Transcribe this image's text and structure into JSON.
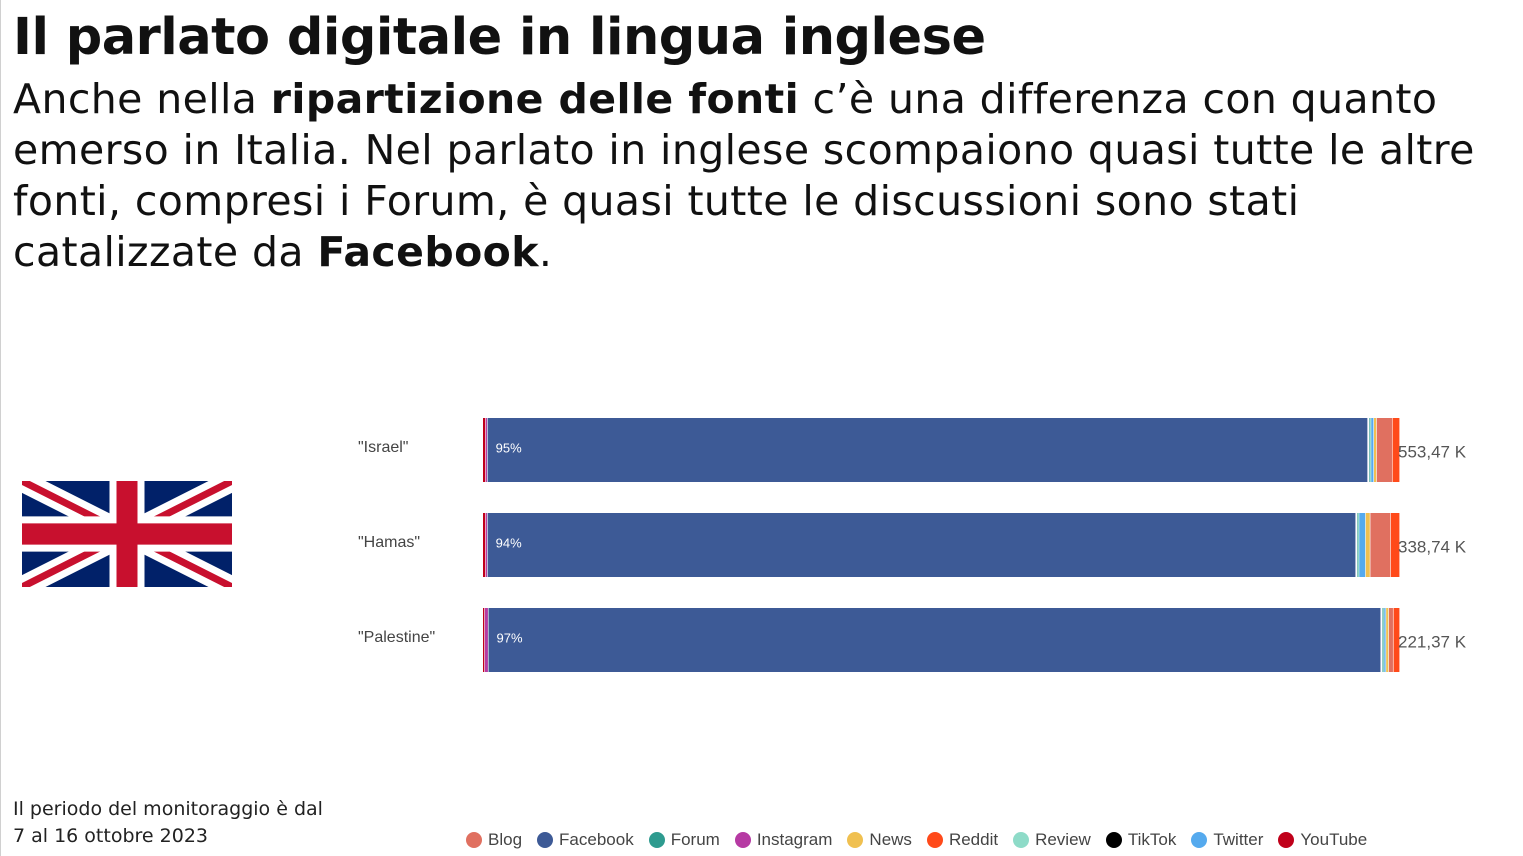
{
  "slide": {
    "title": "Il parlato digitale in lingua inglese",
    "body": {
      "part1": "Anche nella ",
      "bold1": "ripartizione delle fonti",
      "part2": " c’è una differenza con quanto emerso in Italia. Nel parlato in inglese scompaiono quasi tutte le altre fonti, compresi i Forum, è quasi tutte le discussioni sono stati catalizzate da ",
      "bold2": "Facebook",
      "part3": "."
    },
    "footnote": {
      "line1": "Il periodo del monitoraggio è dal",
      "line2": "7 al 16 ottobre 2023"
    },
    "flag": "united-kingdom-flag"
  },
  "chart_data": {
    "type": "bar",
    "orientation": "horizontal",
    "stacking": "percent",
    "categories": [
      "\"Israel\"",
      "\"Hamas\"",
      "\"Palestine\""
    ],
    "totals": [
      "553,47 K",
      "338,74 K",
      "221,37 K"
    ],
    "segment_order": [
      "YouTube",
      "Instagram",
      "Facebook",
      "Forum",
      "Review",
      "Twitter",
      "News",
      "Blog",
      "Reddit",
      "TikTok"
    ],
    "series": [
      {
        "name": "YouTube",
        "color": "#c0001a",
        "values": [
          0.3,
          0.3,
          0.2
        ]
      },
      {
        "name": "Instagram",
        "color": "#b63aa3",
        "values": [
          0.2,
          0.2,
          0.4
        ]
      },
      {
        "name": "Facebook",
        "color": "#3d5a96",
        "values": [
          95,
          94,
          97
        ],
        "labels": [
          "95%",
          "94%",
          "97%"
        ]
      },
      {
        "name": "Forum",
        "color": "#2e9b8f",
        "values": [
          0.1,
          0.1,
          0.1
        ]
      },
      {
        "name": "Review",
        "color": "#8edbc8",
        "values": [
          0.1,
          0.1,
          0.1
        ]
      },
      {
        "name": "Twitter",
        "color": "#55aaee",
        "values": [
          0.3,
          0.7,
          0.2
        ]
      },
      {
        "name": "News",
        "color": "#f0c050",
        "values": [
          0.3,
          0.5,
          0.3
        ]
      },
      {
        "name": "Blog",
        "color": "#e07060",
        "values": [
          1.7,
          2.2,
          0.5
        ]
      },
      {
        "name": "Reddit",
        "color": "#ff4a1a",
        "values": [
          0.8,
          1.0,
          0.7
        ]
      },
      {
        "name": "TikTok",
        "color": "#000000",
        "values": [
          0,
          0,
          0
        ]
      }
    ],
    "legend": {
      "position": "bottom",
      "items": [
        {
          "name": "Blog",
          "color": "#e07060"
        },
        {
          "name": "Facebook",
          "color": "#3d5a96"
        },
        {
          "name": "Forum",
          "color": "#2e9b8f"
        },
        {
          "name": "Instagram",
          "color": "#b63aa3"
        },
        {
          "name": "News",
          "color": "#f0c050"
        },
        {
          "name": "Reddit",
          "color": "#ff4a1a"
        },
        {
          "name": "Review",
          "color": "#8edbc8"
        },
        {
          "name": "TikTok",
          "color": "#000000"
        },
        {
          "name": "Twitter",
          "color": "#55aaee"
        },
        {
          "name": "YouTube",
          "color": "#c0001a"
        }
      ]
    },
    "xlim": [
      0,
      100
    ],
    "grid": false
  }
}
